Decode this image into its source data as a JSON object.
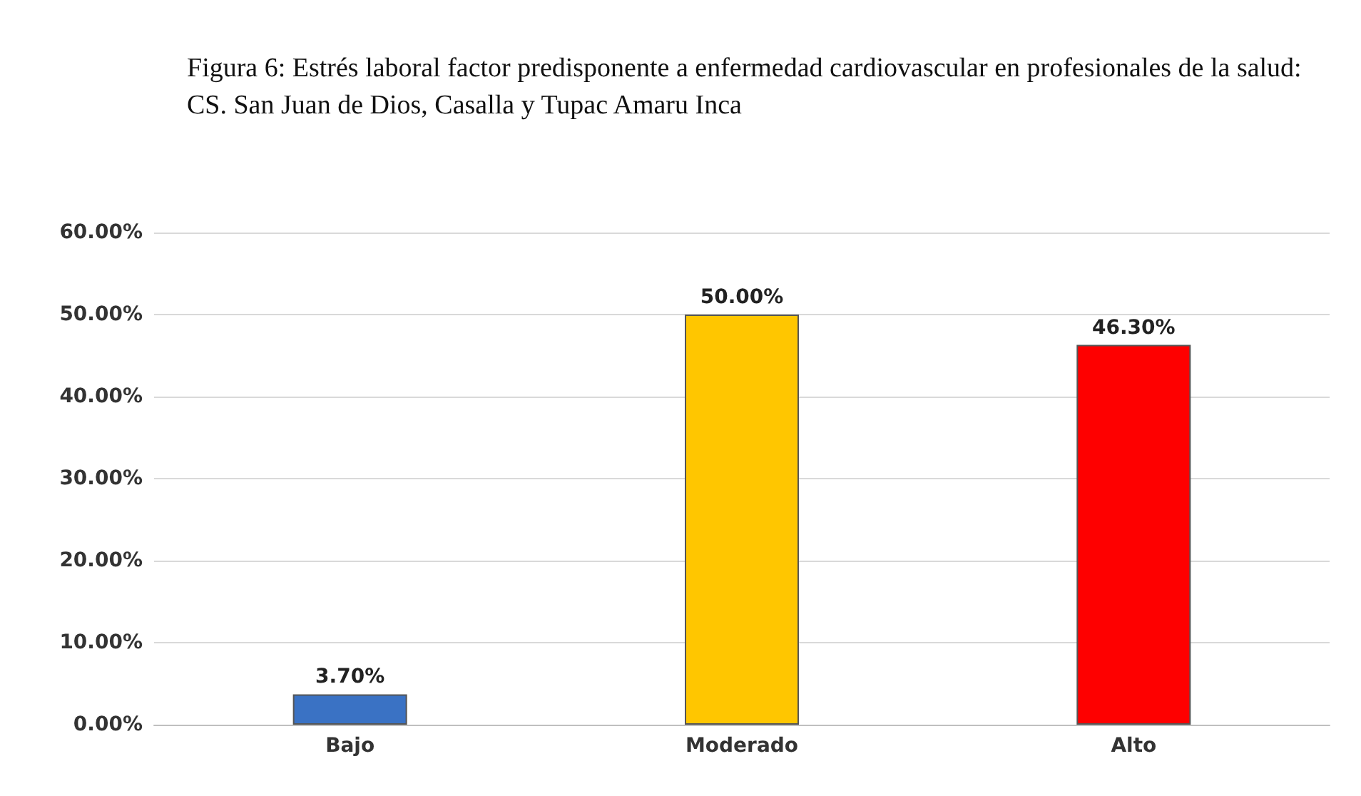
{
  "chart_data": {
    "type": "bar",
    "title": "Figura 6: Estrés laboral factor predisponente a enfermedad cardiovascular en profesionales de la salud: CS. San Juan de Dios, Casalla y Tupac Amaru Inca",
    "categories": [
      "Bajo",
      "Moderado",
      "Alto"
    ],
    "values": [
      3.7,
      50,
      46.3
    ],
    "colors": [
      "#3a72c4",
      "#ffc600",
      "#fe0000"
    ],
    "value_labels": [
      "3.70%",
      "50.00%",
      "46.30%"
    ],
    "ylim": [
      0,
      60
    ],
    "yticks": [
      {
        "value": 0,
        "label": "0.00%"
      },
      {
        "value": 10,
        "label": "10.00%"
      },
      {
        "value": 20,
        "label": "20.00%"
      },
      {
        "value": 30,
        "label": "30.00%"
      },
      {
        "value": 40,
        "label": "40.00%"
      },
      {
        "value": 50,
        "label": "50.00%"
      },
      {
        "value": 60,
        "label": "60.00%"
      }
    ],
    "grid": "y"
  }
}
